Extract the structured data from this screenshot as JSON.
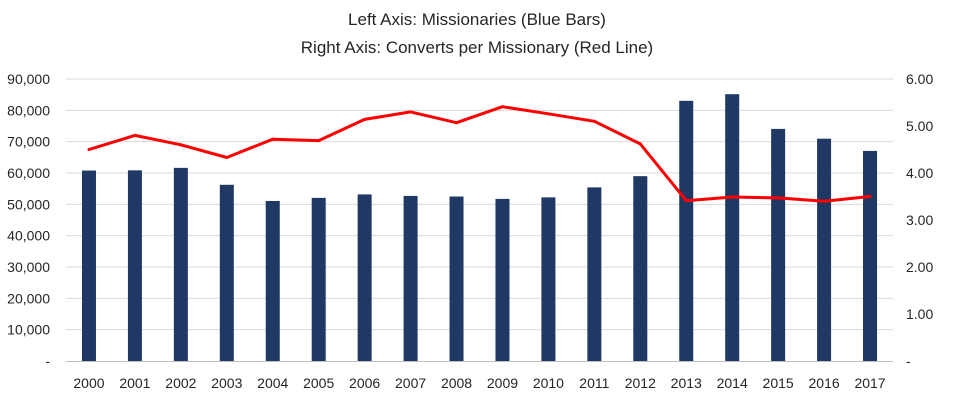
{
  "chart_data": {
    "type": "bar",
    "title_lines": [
      "Left Axis: Missionaries (Blue Bars)",
      "Right Axis: Converts per Missionary (Red Line)"
    ],
    "categories": [
      "2000",
      "2001",
      "2002",
      "2003",
      "2004",
      "2005",
      "2006",
      "2007",
      "2008",
      "2009",
      "2010",
      "2011",
      "2012",
      "2013",
      "2014",
      "2015",
      "2016",
      "2017"
    ],
    "series": [
      {
        "type": "bar",
        "axis": "left",
        "values": [
          60784,
          60850,
          61638,
          56237,
          51067,
          52060,
          53164,
          52686,
          52494,
          51736,
          52225,
          55410,
          58990,
          83035,
          85147,
          74079,
          70946,
          67049
        ],
        "color": "#1f3864"
      },
      {
        "type": "line",
        "axis": "right",
        "values": [
          4.5,
          4.8,
          4.6,
          4.33,
          4.72,
          4.69,
          5.14,
          5.3,
          5.07,
          5.41,
          5.26,
          5.1,
          4.62,
          3.41,
          3.49,
          3.47,
          3.4,
          3.5
        ],
        "color": "#ff0000"
      }
    ],
    "left_axis": {
      "range": [
        0,
        90000
      ],
      "tick_values": [
        0,
        10000,
        20000,
        30000,
        40000,
        50000,
        60000,
        70000,
        80000,
        90000
      ],
      "tick_labels": [
        "-",
        "10,000",
        "20,000",
        "30,000",
        "40,000",
        "50,000",
        "60,000",
        "70,000",
        "80,000",
        "90,000"
      ]
    },
    "right_axis": {
      "range": [
        0,
        6
      ],
      "tick_values": [
        0,
        1,
        2,
        3,
        4,
        5,
        6
      ],
      "tick_labels": [
        "-",
        "1.00",
        "2.00",
        "3.00",
        "4.00",
        "5.00",
        "6.00"
      ]
    },
    "grid": true,
    "legend": "none"
  }
}
